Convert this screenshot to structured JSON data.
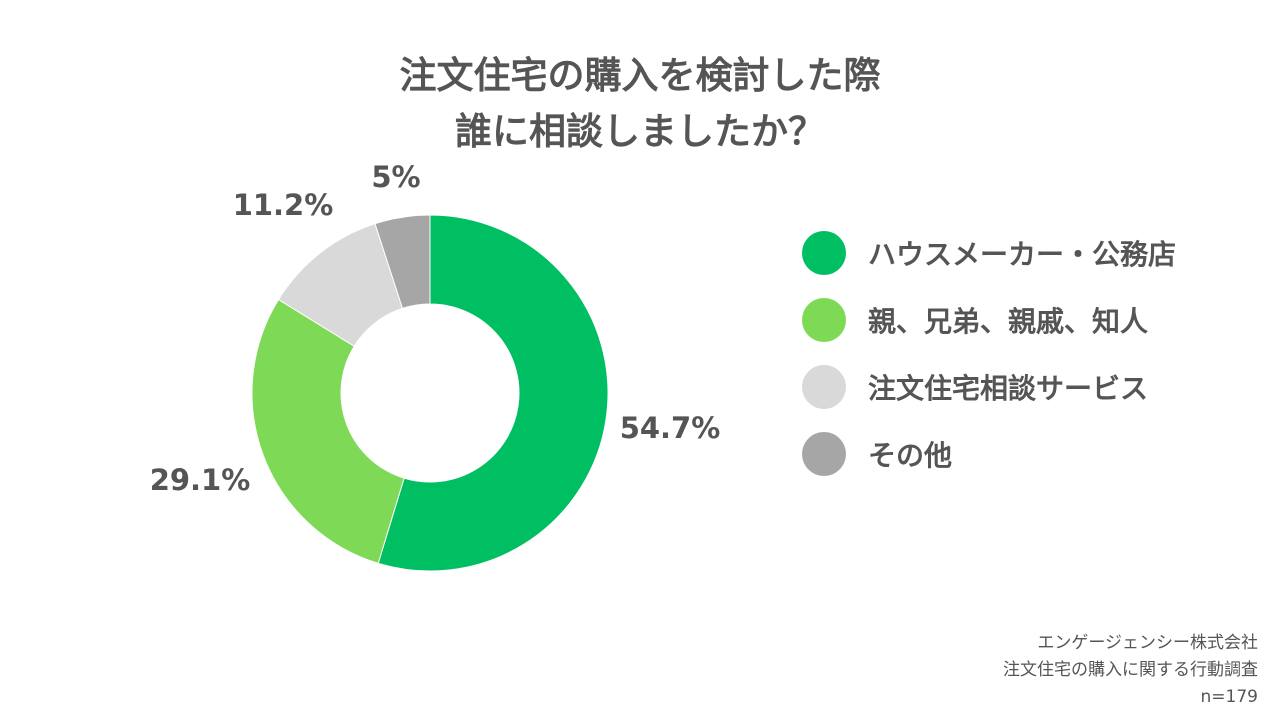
{
  "title": {
    "line1": "注文住宅の購入を検討した際",
    "line2": "誰に相談しましたか？"
  },
  "chart_data": {
    "type": "pie",
    "variant": "donut",
    "categories": [
      "ハウスメーカー・公務店",
      "親、兄弟、親戚、知人",
      "注文住宅相談サービス",
      "その他"
    ],
    "values": [
      54.7,
      29.1,
      11.2,
      5
    ],
    "value_labels": [
      "54.7%",
      "29.1%",
      "11.2%",
      "5%"
    ],
    "colors": [
      "#00bf63",
      "#7ed957",
      "#d9d9d9",
      "#a6a6a6"
    ],
    "legend_position": "right"
  },
  "footer": {
    "line1": "エンゲージェンシー株式会社",
    "line2": "注文住宅の購入に関する行動調査",
    "line3": "n=179"
  }
}
